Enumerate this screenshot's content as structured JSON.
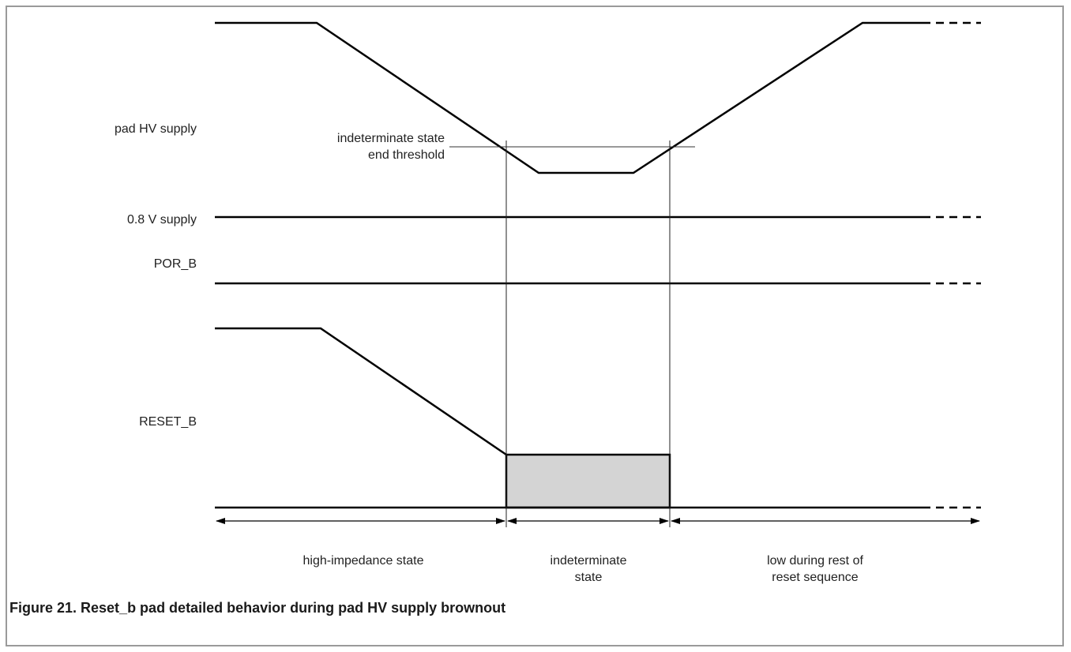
{
  "signals": [
    {
      "id": "pad_hv_supply",
      "label": "pad HV supply"
    },
    {
      "id": "supply_0_8v",
      "label": "0.8 V supply"
    },
    {
      "id": "por_b",
      "label": "POR_B"
    },
    {
      "id": "reset_b",
      "label": "RESET_B"
    }
  ],
  "threshold": {
    "line1": "indeterminate state",
    "line2": "end threshold"
  },
  "regions": [
    {
      "id": "high_impedance",
      "line1": "high-impedance state",
      "line2": ""
    },
    {
      "id": "indeterminate",
      "line1": "indeterminate",
      "line2": "state"
    },
    {
      "id": "low_rest",
      "line1": "low during rest of",
      "line2": "reset sequence"
    }
  ],
  "caption": "Figure 21.  Reset_b pad detailed behavior during pad HV supply brownout",
  "colors": {
    "line": "#000000",
    "fill": "#d4d4d4",
    "frame": "#9a9a9a",
    "guide": "#222222"
  }
}
